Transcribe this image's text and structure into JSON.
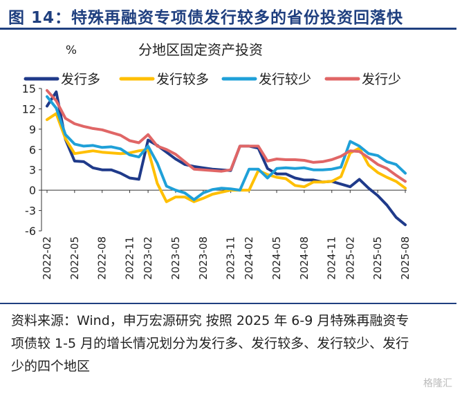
{
  "figure_title": "图 14：特殊再融资专项债发行较多的省份投资回落快",
  "source_note": "资料来源：Wind，申万宏源研究 按照 2025 年 6-9 月特殊再融资专项债较 1-5 月的增长情况划分为发行多、发行较多、发行较少、发行少的四个地区",
  "watermark": "格隆汇",
  "chart_data": {
    "type": "line",
    "title": "分地区固定资产投资",
    "ylabel": "%",
    "xlabel": "",
    "ylim": [
      -6,
      15
    ],
    "yticks": [
      -6,
      -3,
      0,
      3,
      6,
      9,
      12,
      15
    ],
    "legend_position": "top",
    "grid": false,
    "x": [
      "2022-02",
      "2022-03",
      "2022-04",
      "2022-05",
      "2022-06",
      "2022-07",
      "2022-08",
      "2022-09",
      "2022-10",
      "2022-11",
      "2022-12",
      "2023-02",
      "2023-03",
      "2023-04",
      "2023-05",
      "2023-06",
      "2023-07",
      "2023-08",
      "2023-09",
      "2023-10",
      "2023-11",
      "2023-12",
      "2024-02",
      "2024-03",
      "2024-04",
      "2024-05",
      "2024-06",
      "2024-07",
      "2024-08",
      "2024-09",
      "2024-10",
      "2024-11",
      "2024-12",
      "2025-02",
      "2025-03",
      "2025-04",
      "2025-05",
      "2025-06",
      "2025-07",
      "2025-08"
    ],
    "xticklabels": [
      "2022-02",
      "2022-05",
      "2022-08",
      "2022-11",
      "2023-02",
      "2023-05",
      "2023-08",
      "2023-11",
      "2024-02",
      "2024-05",
      "2024-08",
      "2024-11",
      "2025-02",
      "2025-05",
      "2025-08"
    ],
    "series": [
      {
        "name": "发行多",
        "color": "#1f3a8a",
        "values": [
          12.4,
          14.5,
          7.5,
          4.3,
          4.2,
          3.3,
          3.0,
          3.0,
          2.5,
          1.8,
          1.6,
          7.4,
          6.6,
          5.6,
          4.6,
          3.8,
          3.5,
          3.3,
          3.1,
          3.0,
          2.9,
          6.5,
          6.5,
          6.2,
          3.2,
          2.4,
          2.4,
          1.8,
          1.5,
          1.5,
          1.2,
          1.3,
          0.9,
          0.5,
          1.6,
          0.3,
          -0.8,
          -2.2,
          -4.0,
          -5.1
        ]
      },
      {
        "name": "发行较多",
        "color": "#ffbf00",
        "values": [
          10.4,
          11.3,
          7.6,
          5.4,
          5.6,
          5.8,
          5.6,
          5.5,
          5.4,
          5.5,
          5.8,
          6.0,
          1.0,
          -1.7,
          -1.0,
          -1.0,
          -1.7,
          -1.2,
          -0.6,
          -0.3,
          0.0,
          0.0,
          0.0,
          2.9,
          2.3,
          1.9,
          1.7,
          0.7,
          0.5,
          1.2,
          1.2,
          1.3,
          2.0,
          5.5,
          6.2,
          3.7,
          2.6,
          1.9,
          1.3,
          0.3
        ]
      },
      {
        "name": "发行较少",
        "color": "#1fa0d8",
        "values": [
          13.8,
          12.1,
          8.2,
          6.8,
          6.5,
          6.6,
          6.3,
          6.4,
          6.1,
          5.2,
          4.9,
          6.5,
          4.0,
          0.6,
          0.0,
          -0.4,
          -1.4,
          -0.4,
          0.1,
          0.3,
          0.2,
          0.0,
          3.1,
          3.1,
          1.8,
          3.2,
          3.3,
          3.2,
          3.3,
          3.0,
          3.0,
          3.1,
          3.4,
          7.2,
          6.5,
          5.4,
          5.1,
          4.2,
          3.8,
          2.5
        ]
      },
      {
        "name": "发行少",
        "color": "#e06666",
        "values": [
          14.7,
          13.2,
          10.6,
          9.8,
          9.4,
          9.1,
          8.9,
          8.5,
          8.1,
          7.3,
          7.0,
          8.2,
          6.5,
          6.0,
          5.3,
          4.2,
          3.1,
          3.0,
          2.9,
          2.8,
          3.0,
          6.5,
          6.5,
          6.5,
          4.3,
          4.6,
          4.5,
          4.5,
          4.4,
          4.1,
          4.2,
          4.5,
          5.0,
          5.8,
          5.7,
          4.8,
          3.8,
          3.2,
          2.2,
          1.3
        ]
      }
    ]
  }
}
